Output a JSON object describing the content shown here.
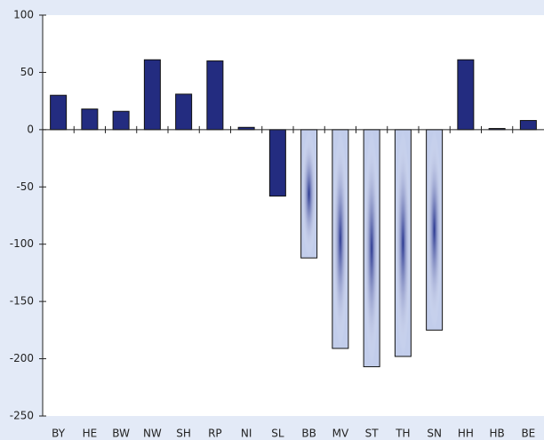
{
  "chart_data": {
    "type": "bar",
    "categories": [
      "BY",
      "HE",
      "BW",
      "NW",
      "SH",
      "RP",
      "NI",
      "SL",
      "BB",
      "MV",
      "ST",
      "TH",
      "SN",
      "HH",
      "HB",
      "BE"
    ],
    "values": [
      30,
      18,
      16,
      61,
      31,
      60,
      2,
      -58,
      -112,
      -191,
      -207,
      -198,
      -175,
      61,
      1,
      8
    ],
    "colors": [
      "#232c80",
      "#232c80",
      "#232c80",
      "#232c80",
      "#232c80",
      "#232c80",
      "#232c80",
      "#232c80",
      "#c2cdeb",
      "#c2cdeb",
      "#c2cdeb",
      "#c2cdeb",
      "#c2cdeb",
      "#232c80",
      "#232c80",
      "#232c80"
    ],
    "ylim": [
      -250,
      100
    ],
    "yticks": [
      100,
      50,
      0,
      -50,
      -100,
      -150,
      -200,
      -250
    ],
    "grid": false
  }
}
